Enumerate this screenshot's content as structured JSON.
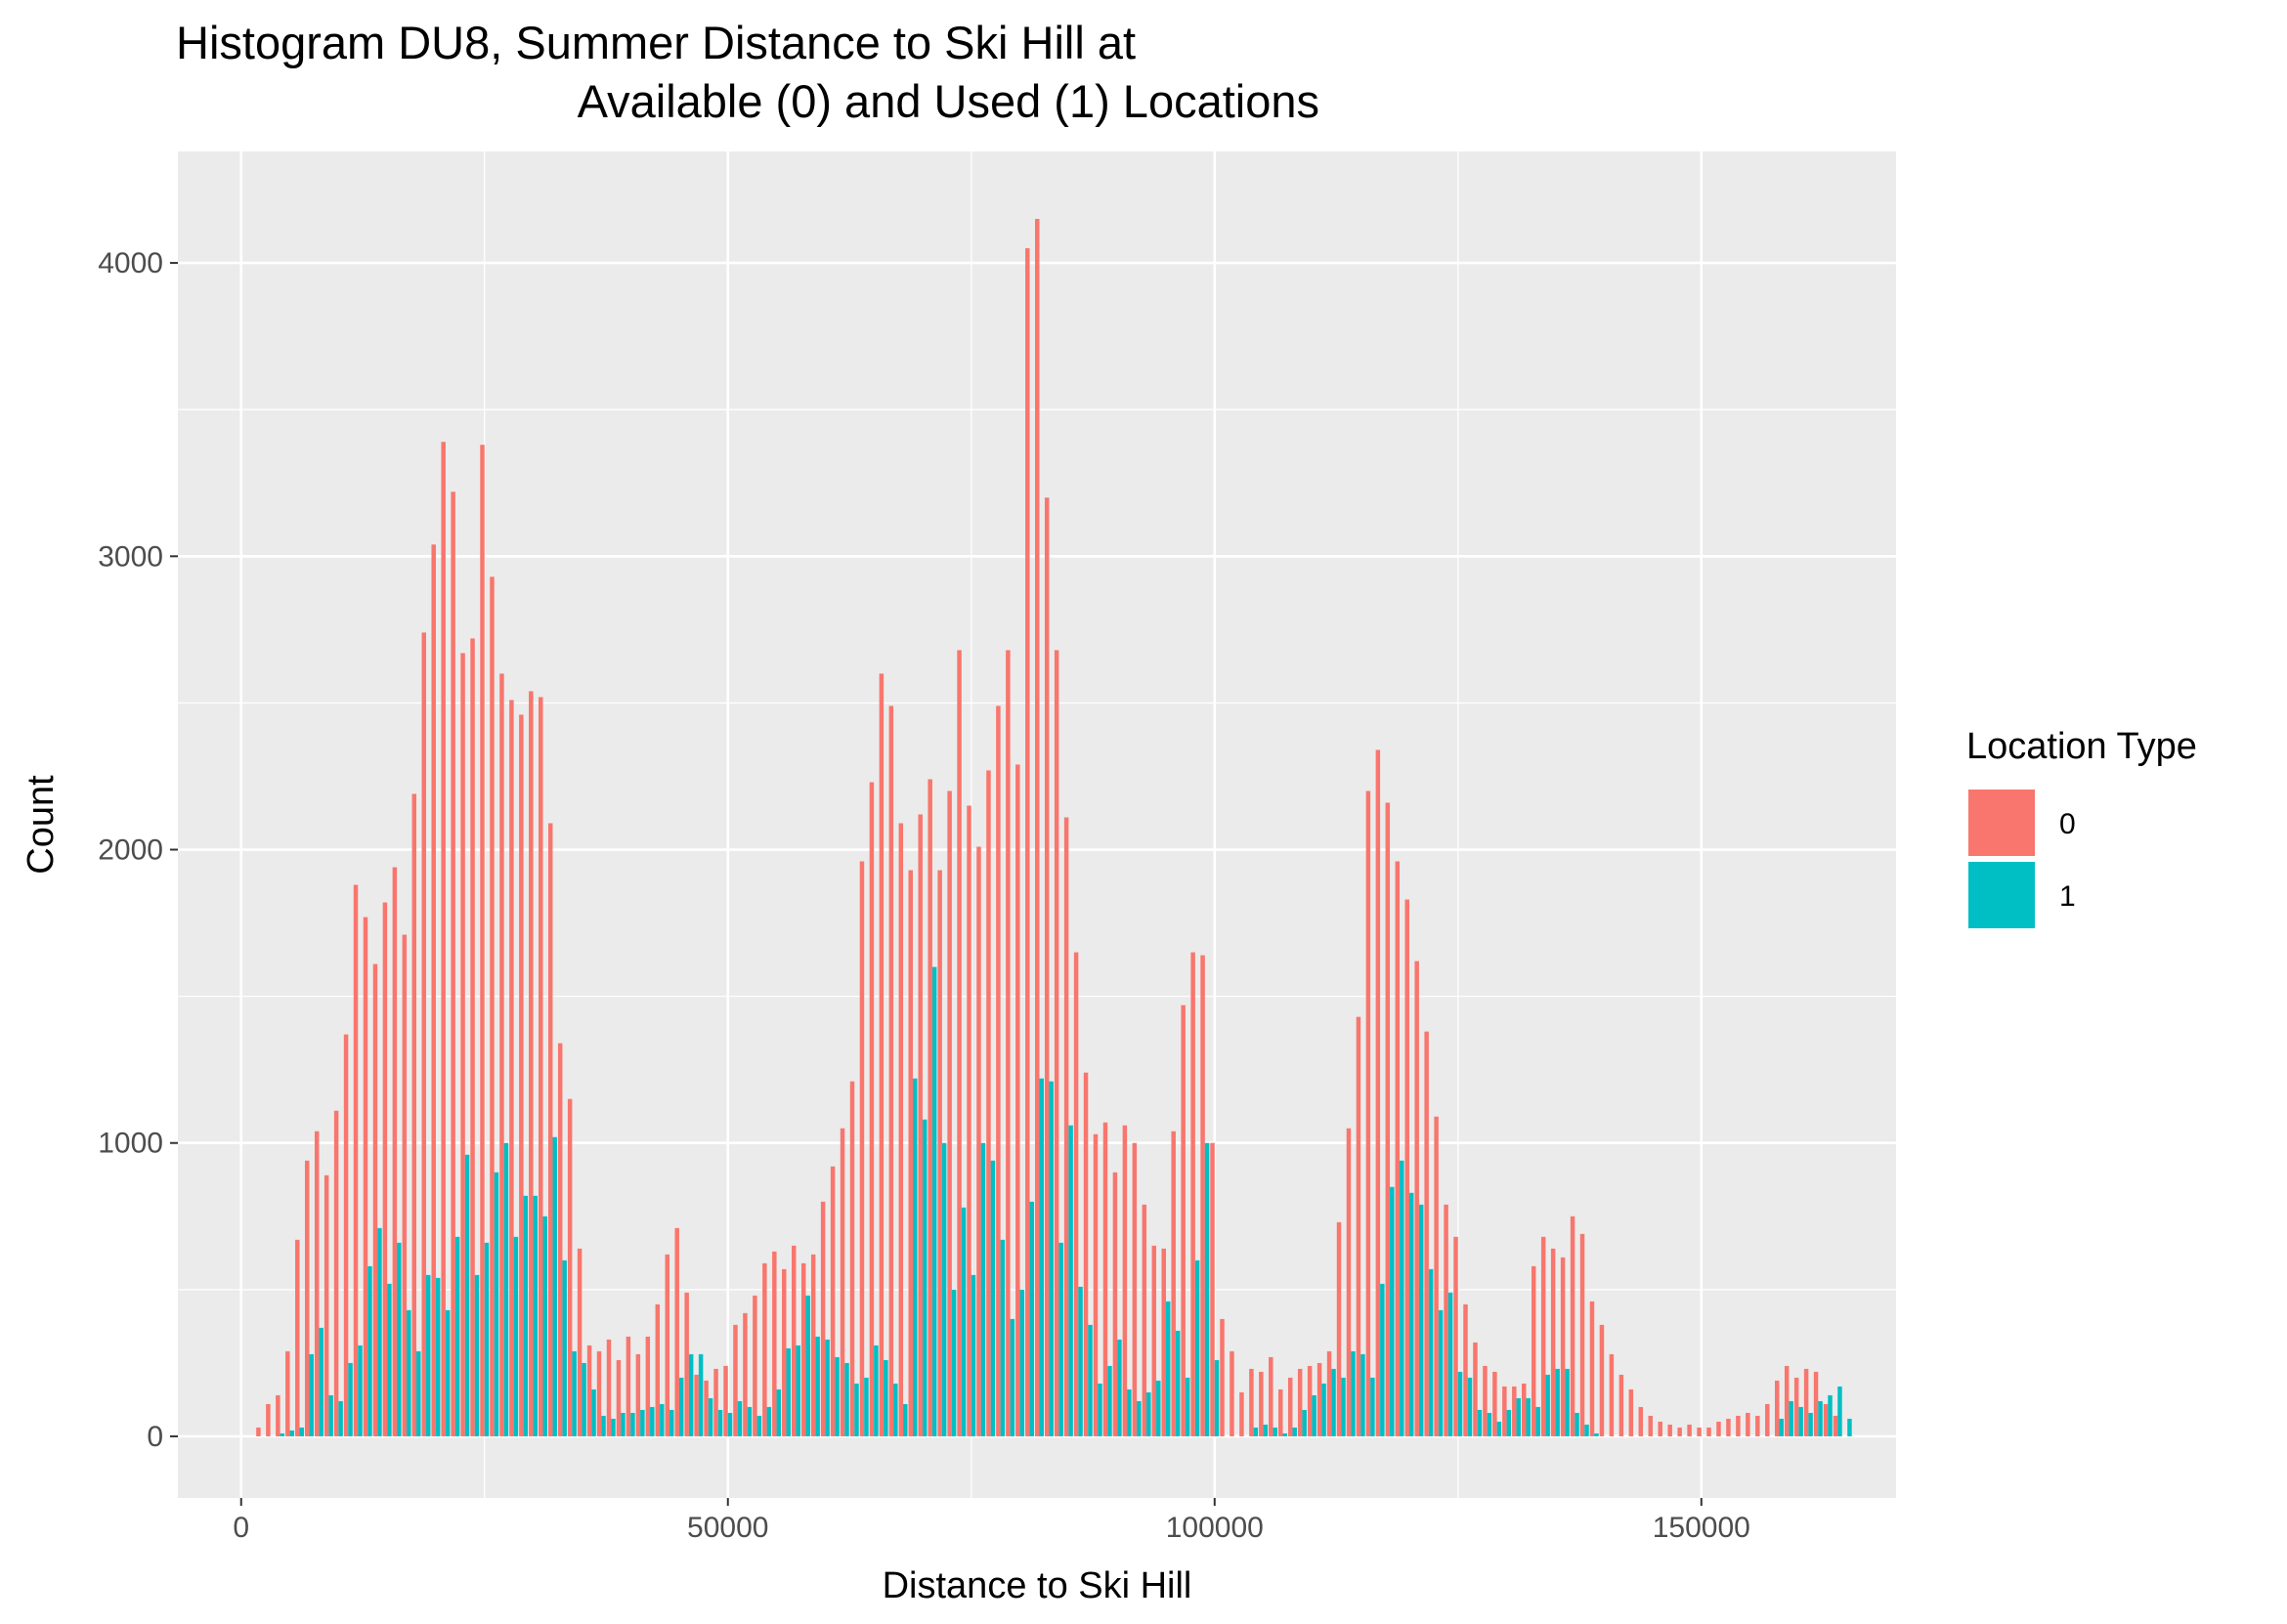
{
  "chart_data": {
    "type": "bar",
    "title_lines": [
      "Histogram DU8, Summer Distance to Ski Hill at",
      "Available (0) and Used (1) Locations"
    ],
    "xlabel": "Distance to Ski Hill",
    "ylabel": "Count",
    "xlim": [
      -6500,
      170000
    ],
    "ylim": [
      -210,
      4380
    ],
    "x_ticks": [
      0,
      50000,
      100000,
      150000
    ],
    "x_tick_labels": [
      "0",
      "50000",
      "100000",
      "150000"
    ],
    "y_ticks": [
      0,
      1000,
      2000,
      3000,
      4000
    ],
    "y_tick_labels": [
      "0",
      "1000",
      "2000",
      "3000",
      "4000"
    ],
    "grid": true,
    "legend_position": "right",
    "legend_title": "Location Type",
    "bin_width": 1000,
    "x_start": 2000,
    "series": [
      {
        "name": "0",
        "color": "#F8766D",
        "values": [
          30,
          110,
          140,
          290,
          670,
          940,
          1040,
          890,
          1110,
          1370,
          1880,
          1770,
          1610,
          1820,
          1940,
          1710,
          2190,
          2740,
          3040,
          3390,
          3220,
          2670,
          2720,
          3380,
          2930,
          2600,
          2510,
          2460,
          2540,
          2520,
          2090,
          1340,
          1150,
          640,
          310,
          290,
          330,
          260,
          340,
          280,
          340,
          450,
          620,
          710,
          490,
          210,
          190,
          230,
          240,
          380,
          420,
          480,
          590,
          630,
          570,
          650,
          590,
          620,
          800,
          920,
          1050,
          1210,
          1960,
          2230,
          2600,
          2490,
          2090,
          1930,
          2120,
          2240,
          1930,
          2200,
          2680,
          2150,
          2010,
          2270,
          2490,
          2680,
          2290,
          4050,
          4150,
          3200,
          2680,
          2110,
          1650,
          1240,
          1030,
          1070,
          900,
          1060,
          1000,
          790,
          650,
          640,
          1040,
          1470,
          1650,
          1640,
          1000,
          400,
          290,
          150,
          230,
          220,
          270,
          160,
          200,
          230,
          240,
          250,
          290,
          730,
          1050,
          1430,
          2200,
          2340,
          2160,
          1960,
          1830,
          1620,
          1380,
          1090,
          790,
          680,
          450,
          320,
          240,
          220,
          170,
          170,
          180,
          580,
          680,
          640,
          610,
          750,
          690,
          460,
          380,
          280,
          210,
          160,
          100,
          70,
          50,
          40,
          30,
          40,
          30,
          30,
          50,
          60,
          70,
          80,
          70,
          110,
          190,
          240,
          200,
          230,
          220,
          110,
          70
        ]
      },
      {
        "name": "1",
        "color": "#00BFC4",
        "values": [
          0,
          0,
          10,
          20,
          30,
          280,
          370,
          140,
          120,
          250,
          310,
          580,
          710,
          520,
          660,
          430,
          290,
          550,
          540,
          430,
          680,
          960,
          550,
          660,
          900,
          1000,
          680,
          820,
          820,
          750,
          1020,
          600,
          290,
          250,
          160,
          70,
          60,
          80,
          80,
          90,
          100,
          110,
          90,
          200,
          280,
          280,
          130,
          90,
          80,
          120,
          100,
          70,
          100,
          160,
          300,
          310,
          480,
          340,
          330,
          270,
          250,
          180,
          200,
          310,
          260,
          180,
          110,
          1220,
          1080,
          1600,
          1000,
          500,
          780,
          550,
          1000,
          940,
          670,
          400,
          500,
          800,
          1220,
          1210,
          660,
          1060,
          510,
          380,
          180,
          240,
          330,
          160,
          120,
          150,
          190,
          460,
          360,
          200,
          600,
          1000,
          260,
          0,
          0,
          0,
          30,
          40,
          30,
          10,
          30,
          90,
          140,
          180,
          230,
          200,
          290,
          280,
          200,
          520,
          850,
          940,
          830,
          790,
          570,
          430,
          490,
          220,
          200,
          90,
          80,
          50,
          90,
          130,
          130,
          100,
          210,
          230,
          230,
          80,
          40,
          10,
          0,
          0,
          0,
          0,
          0,
          0,
          0,
          0,
          0,
          0,
          0,
          0,
          0,
          0,
          0,
          0,
          0,
          0,
          60,
          120,
          100,
          80,
          120,
          140,
          170,
          60
        ]
      }
    ]
  }
}
